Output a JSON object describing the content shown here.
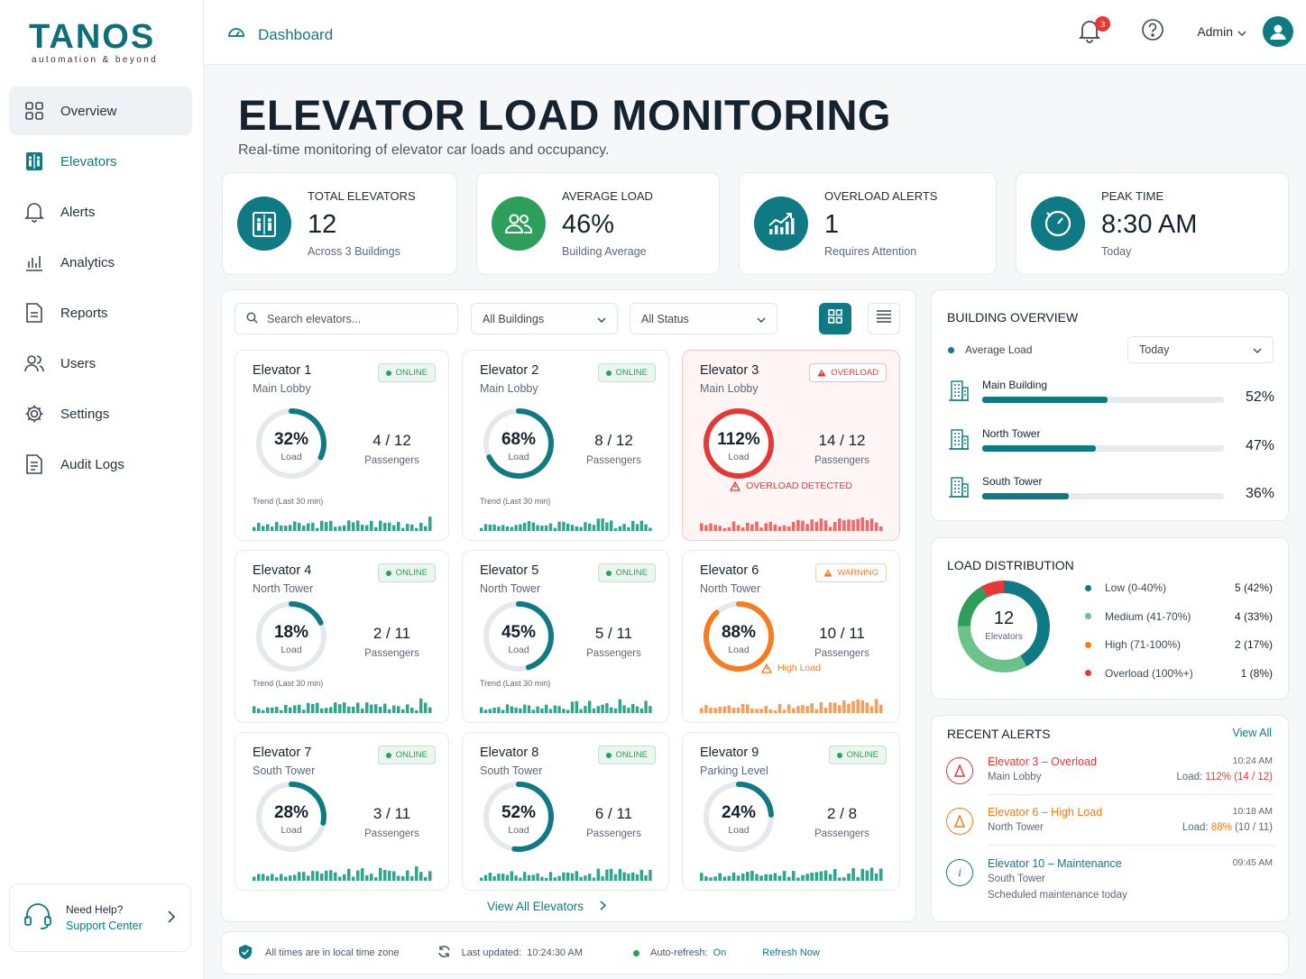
{
  "brand": {
    "name": "TANOS",
    "tagline": "automation & beyond",
    "color": "#0f6e7a"
  },
  "sidebar": {
    "items": [
      {
        "label": "Overview",
        "icon": "grid-icon"
      },
      {
        "label": "Elevators",
        "icon": "elevator-icon"
      },
      {
        "label": "Alerts",
        "icon": "bell-icon"
      },
      {
        "label": "Analytics",
        "icon": "bar-chart-icon"
      },
      {
        "label": "Reports",
        "icon": "document-icon"
      },
      {
        "label": "Users",
        "icon": "users-icon"
      },
      {
        "label": "Settings",
        "icon": "gear-icon"
      },
      {
        "label": "Audit Logs",
        "icon": "log-icon"
      }
    ],
    "help": {
      "title": "Need Help?",
      "link": "Support Center"
    }
  },
  "topbar": {
    "breadcrumb": "Dashboard",
    "notification_count": "3",
    "user": "Admin"
  },
  "page": {
    "title": "ELEVATOR LOAD MONITORING",
    "subtitle": "Real-time monitoring of elevator car loads and occupancy."
  },
  "kpis": [
    {
      "label": "TOTAL ELEVATORS",
      "value": "12",
      "sub": "Across 3 Buildings",
      "color": "#0f7a84"
    },
    {
      "label": "AVERAGE LOAD",
      "value": "46%",
      "sub": "Building Average",
      "color": "#2e9e5b"
    },
    {
      "label": "OVERLOAD ALERTS",
      "value": "1",
      "sub": "Requires Attention",
      "color": "#0f7a84"
    },
    {
      "label": "PEAK TIME",
      "value": "8:30 AM",
      "sub": "Today",
      "color": "#0f7a84"
    }
  ],
  "filters": {
    "search_placeholder": "Search elevators...",
    "building": "All Buildings",
    "status": "All Status"
  },
  "elevators": [
    {
      "name": "Elevator 1",
      "location": "Main Lobby",
      "status": "ONLINE",
      "load": 32,
      "load_text": "32%",
      "pax": "4",
      "cap": "/ 12",
      "trend": "Trend (Last 30 min)"
    },
    {
      "name": "Elevator 2",
      "location": "Main Lobby",
      "status": "ONLINE",
      "load": 68,
      "load_text": "68%",
      "pax": "8",
      "cap": "/ 12",
      "trend": "Trend (Last 30 min)"
    },
    {
      "name": "Elevator 3",
      "location": "Main Lobby",
      "status": "OVERLOAD",
      "load": 112,
      "load_text": "112%",
      "pax": "14",
      "cap": "/ 12",
      "warning": "OVERLOAD DETECTED"
    },
    {
      "name": "Elevator 4",
      "location": "North Tower",
      "status": "ONLINE",
      "load": 18,
      "load_text": "18%",
      "pax": "2",
      "cap": "/ 11",
      "trend": "Trend (Last 30 min)"
    },
    {
      "name": "Elevator 5",
      "location": "North Tower",
      "status": "ONLINE",
      "load": 45,
      "load_text": "45%",
      "pax": "5",
      "cap": "/ 11",
      "trend": "Trend (Last 30 min)"
    },
    {
      "name": "Elevator 6",
      "location": "North Tower",
      "status": "WARNING",
      "load": 88,
      "load_text": "88%",
      "pax": "10",
      "cap": "/ 11",
      "warning": "High Load"
    },
    {
      "name": "Elevator 7",
      "location": "South Tower",
      "status": "ONLINE",
      "load": 28,
      "load_text": "28%",
      "pax": "3",
      "cap": "/ 11"
    },
    {
      "name": "Elevator 8",
      "location": "South Tower",
      "status": "ONLINE",
      "load": 52,
      "load_text": "52%",
      "pax": "6",
      "cap": "/ 11"
    },
    {
      "name": "Elevator 9",
      "location": "Parking Level",
      "status": "ONLINE",
      "load": 24,
      "load_text": "24%",
      "pax": "2",
      "cap": "/ 8"
    }
  ],
  "labels": {
    "load": "Load",
    "passengers": "Passengers",
    "view_all_elevators": "View All Elevators"
  },
  "building_overview": {
    "title": "BUILDING OVERVIEW",
    "legend": "Average Load",
    "period": "Today",
    "buildings": [
      {
        "name": "Main Building",
        "load": 52,
        "text": "52%"
      },
      {
        "name": "North Tower",
        "load": 47,
        "text": "47%"
      },
      {
        "name": "South Tower",
        "load": 36,
        "text": "36%"
      }
    ]
  },
  "load_distribution": {
    "title": "LOAD DISTRIBUTION",
    "total": "12",
    "total_label": "Elevators",
    "segments": [
      {
        "label": "Low (0-40%)",
        "value": "5 (42%)",
        "count": 5,
        "color": "#0f7a84"
      },
      {
        "label": "Medium (41-70%)",
        "value": "4 (33%)",
        "count": 4,
        "color": "#6cc38a"
      },
      {
        "label": "High (71-100%)",
        "value": "2 (17%)",
        "count": 2,
        "color": "#2e9e5b"
      },
      {
        "label": "Overload (100%+)",
        "value": "1 (8%)",
        "count": 1,
        "color": "#e53935"
      }
    ],
    "legend_dot_colors": [
      "#0f7a84",
      "#6cc38a",
      "#f57c1f",
      "#e53935"
    ]
  },
  "recent_alerts": {
    "title": "RECENT ALERTS",
    "view_all": "View All",
    "items": [
      {
        "title": "Elevator 3 – Overload",
        "location": "Main Lobby",
        "time": "10:24 AM",
        "load_prefix": "Load: ",
        "load_value": "112% (14 / 12)",
        "color": "#e53935"
      },
      {
        "title": "Elevator 6 – High Load",
        "location": "North Tower",
        "time": "10:18 AM",
        "load_prefix": "Load: ",
        "load_value": "88%",
        "load_suffix": " (10 / 11)",
        "color": "#f57c1f"
      },
      {
        "title": "Elevator 10 – Maintenance",
        "location": "South Tower",
        "time": "09:45 AM",
        "note": "Scheduled maintenance today",
        "color": "#0f7a84"
      }
    ]
  },
  "footer": {
    "timezone": "All times are in local time zone",
    "updated_label": "Last updated:",
    "updated_time": "10:24:30 AM",
    "auto_label": "Auto-refresh:",
    "auto_value": "On",
    "refresh": "Refresh Now"
  }
}
